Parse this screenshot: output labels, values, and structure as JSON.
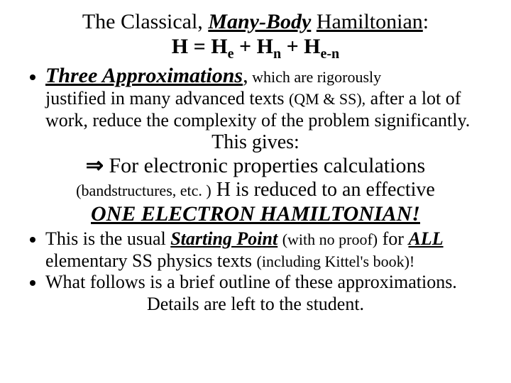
{
  "title": {
    "pre": "The Classical, ",
    "manybody": "Many-Body",
    "space": " ",
    "hamiltonian": "Hamiltonian",
    "colon": ":"
  },
  "equation": {
    "H": "H",
    "eq": " = ",
    "He": "H",
    "e": "e",
    "plus1": " + ",
    "Hn": "H",
    "n": "n",
    "plus2": " + ",
    "Hen": "H",
    "en": "e-n"
  },
  "bullet1": {
    "head": "Three Approximations",
    "comma": ",",
    "tail1": " which are rigorously",
    "line2a": "justified in many advanced texts ",
    "paren1": "(QM & SS),",
    "line2b": " after a lot of",
    "line3": "work, reduce the complexity of the problem significantly."
  },
  "thisGives": "This gives:",
  "arrowLine": {
    "arrow": "⇒",
    "text": " For electronic properties calculations"
  },
  "bandLine": {
    "paren": "(bandstructures, etc. )",
    "rest": " H is reduced to an effective"
  },
  "oneElectron": "ONE ELECTRON HAMILTONIAN!",
  "bullet2": {
    "a": "This is the usual ",
    "start": "Starting Point",
    "b": " ",
    "paren": "(with no proof)",
    "c": " for ",
    "all": "ALL",
    "line2": "elementary SS physics texts ",
    "paren2": "(including Kittel's book)!"
  },
  "bullet3": {
    "line1": "What follows is a brief outline of these approximations."
  },
  "details": "Details are left to the student."
}
